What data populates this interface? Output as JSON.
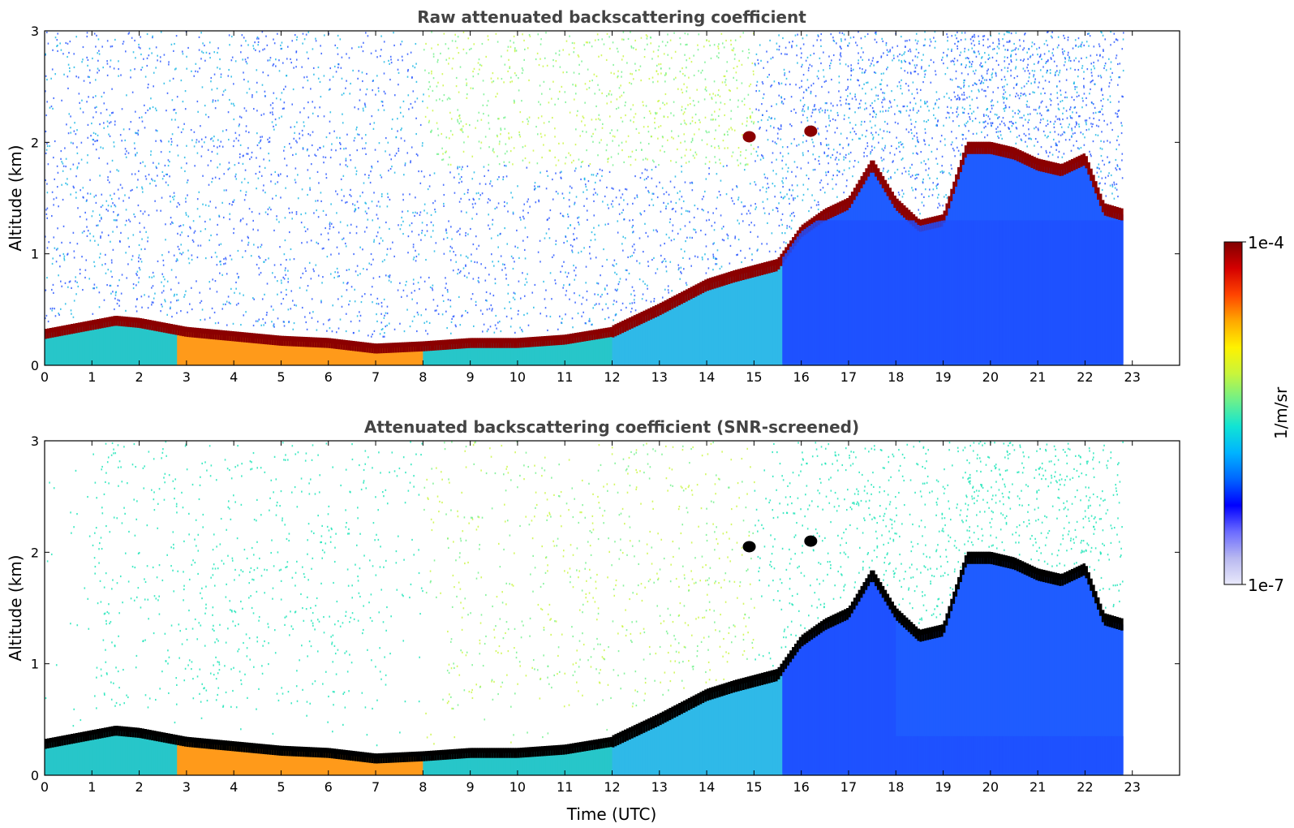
{
  "chart_data": [
    {
      "type": "heatmap",
      "title": "Raw attenuated backscattering coefficient",
      "xlabel": "",
      "ylabel": "Altitude (km)",
      "xlim": [
        0,
        24
      ],
      "ylim": [
        0,
        3
      ],
      "xticks": [
        "0",
        "1",
        "2",
        "3",
        "4",
        "5",
        "6",
        "7",
        "8",
        "9",
        "10",
        "11",
        "12",
        "13",
        "14",
        "15",
        "16",
        "17",
        "18",
        "19",
        "20",
        "21",
        "22",
        "23"
      ],
      "yticks": [
        "0",
        "1",
        "2",
        "3"
      ],
      "data_end_time": 22.8,
      "layer_top_km": {
        "time": [
          0,
          1.5,
          2,
          3,
          4,
          5,
          6,
          7,
          8,
          9,
          10,
          11,
          12,
          13,
          14,
          14.6,
          15.5,
          16,
          16.5,
          17,
          17.5,
          18,
          18.5,
          19,
          19.5,
          20,
          20.5,
          21,
          21.5,
          22,
          22.4,
          22.8
        ],
        "altitude": [
          0.28,
          0.4,
          0.38,
          0.3,
          0.26,
          0.22,
          0.2,
          0.15,
          0.17,
          0.2,
          0.2,
          0.23,
          0.3,
          0.5,
          0.72,
          0.8,
          0.9,
          1.2,
          1.35,
          1.45,
          1.8,
          1.45,
          1.25,
          1.3,
          1.95,
          1.95,
          1.9,
          1.8,
          1.75,
          1.85,
          1.4,
          1.35
        ]
      },
      "isolated_cloud_patches": [
        {
          "time": 14.9,
          "altitude": 2.05
        },
        {
          "time": 16.2,
          "altitude": 2.1
        }
      ]
    },
    {
      "type": "heatmap",
      "title": "Attenuated backscattering coefficient (SNR-screened)",
      "xlabel": "Time (UTC)",
      "ylabel": "Altitude (km)",
      "xlim": [
        0,
        24
      ],
      "ylim": [
        0,
        3
      ],
      "xticks": [
        "0",
        "1",
        "2",
        "3",
        "4",
        "5",
        "6",
        "7",
        "8",
        "9",
        "10",
        "11",
        "12",
        "13",
        "14",
        "15",
        "16",
        "17",
        "18",
        "19",
        "20",
        "21",
        "22",
        "23"
      ],
      "yticks": [
        "0",
        "1",
        "2",
        "3"
      ],
      "data_end_time": 22.8,
      "screened_floor_km": 0.35
    }
  ],
  "colorbar": {
    "label": "1/m/sr",
    "max_label": "1e-4",
    "min_label": "1e-7",
    "colors": [
      "#e9e9fb",
      "#b8b8f0",
      "#6b6bff",
      "#0000ff",
      "#0066ff",
      "#00b4ff",
      "#11e4d4",
      "#6ef08a",
      "#c8f53c",
      "#fff200",
      "#ffa800",
      "#ff4400",
      "#d40000",
      "#800000"
    ]
  },
  "colors": {
    "layer": "#8b0000",
    "screened_layer": "#000000",
    "near_surface_aerosol": "#2fb9e8",
    "background_noise": "#1f4fff",
    "free_troposphere_noise": "#b6f36c"
  }
}
